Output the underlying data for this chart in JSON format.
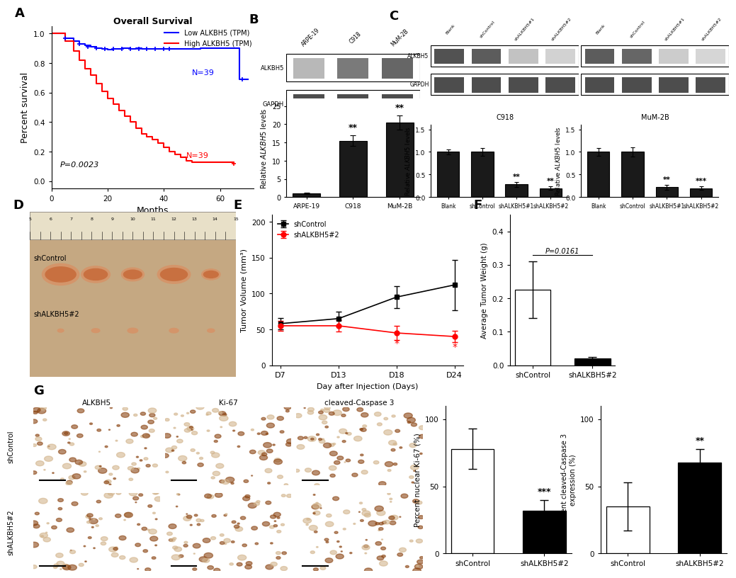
{
  "panel_A": {
    "title": "Overall Survival",
    "xlabel": "Months",
    "ylabel": "Percent survival",
    "p_value": "P=0.0023",
    "blue_label": "Low ALKBH5 (TPM)",
    "red_label": "High ALKBH5 (TPM)",
    "N_blue": "N=39",
    "N_red": "N=39",
    "blue_steps": [
      0,
      5,
      8,
      10,
      12,
      14,
      16,
      18,
      20,
      22,
      25,
      28,
      30,
      32,
      35,
      38,
      40,
      42,
      44,
      46,
      48,
      50,
      53,
      67,
      70
    ],
    "blue_surv": [
      1.0,
      0.97,
      0.95,
      0.93,
      0.92,
      0.91,
      0.9,
      0.895,
      0.89,
      0.895,
      0.9,
      0.895,
      0.9,
      0.895,
      0.895,
      0.895,
      0.895,
      0.895,
      0.895,
      0.895,
      0.895,
      0.895,
      0.9,
      0.69,
      0.69
    ],
    "red_steps": [
      0,
      5,
      8,
      10,
      12,
      14,
      16,
      18,
      20,
      22,
      24,
      26,
      28,
      30,
      32,
      34,
      36,
      38,
      40,
      42,
      44,
      46,
      48,
      50,
      65
    ],
    "red_surv": [
      1.0,
      0.95,
      0.88,
      0.82,
      0.76,
      0.72,
      0.66,
      0.61,
      0.56,
      0.52,
      0.48,
      0.44,
      0.4,
      0.36,
      0.32,
      0.3,
      0.28,
      0.26,
      0.23,
      0.2,
      0.18,
      0.16,
      0.14,
      0.13,
      0.12
    ],
    "blue_censor_x": [
      5,
      10,
      13,
      16,
      19,
      22,
      25,
      28,
      31,
      34,
      37,
      40,
      42,
      68
    ],
    "blue_censor_y": [
      0.97,
      0.93,
      0.91,
      0.9,
      0.895,
      0.895,
      0.895,
      0.895,
      0.895,
      0.895,
      0.895,
      0.895,
      0.895,
      0.69
    ],
    "red_censor_x": [
      65
    ],
    "red_censor_y": [
      0.12
    ],
    "xlim": [
      0,
      72
    ],
    "ylim": [
      -0.05,
      1.05
    ],
    "xticks": [
      0,
      20,
      40,
      60
    ],
    "yticks": [
      0.0,
      0.2,
      0.4,
      0.6,
      0.8,
      1.0
    ]
  },
  "panel_B_bar": {
    "categories": [
      "ARPE-19",
      "C918",
      "MuM-2B"
    ],
    "values": [
      1.0,
      15.5,
      20.5
    ],
    "errors": [
      0.2,
      1.5,
      2.0
    ],
    "ylabel": "Relative ALKBH5 levels",
    "ylim": [
      0,
      27
    ],
    "yticks": [
      0,
      5,
      10,
      15,
      20,
      25
    ],
    "sig_labels": [
      "",
      "**",
      "**"
    ],
    "bar_color": "#1a1a1a",
    "error_color": "black"
  },
  "panel_C_bar_left": {
    "categories": [
      "Blank",
      "shControl",
      "shALKBH5#1",
      "shALKBH5#2"
    ],
    "values": [
      1.0,
      1.0,
      0.28,
      0.2
    ],
    "errors": [
      0.05,
      0.08,
      0.06,
      0.04
    ],
    "title": "C918",
    "ylabel": "Relative ALKBH5 levels",
    "ylim": [
      0,
      1.6
    ],
    "yticks": [
      0.0,
      0.5,
      1.0,
      1.5
    ],
    "sig_labels": [
      "",
      "",
      "**",
      "**"
    ],
    "bar_color": "#1a1a1a"
  },
  "panel_C_bar_right": {
    "categories": [
      "Blank",
      "shControl",
      "shALKBH5#1",
      "shALKBH5#2"
    ],
    "values": [
      1.0,
      1.0,
      0.22,
      0.2
    ],
    "errors": [
      0.08,
      0.1,
      0.05,
      0.04
    ],
    "title": "MuM-2B",
    "ylabel": "Relative ALKBH5 levels",
    "ylim": [
      0,
      1.6
    ],
    "yticks": [
      0.0,
      0.5,
      1.0,
      1.5
    ],
    "sig_labels": [
      "",
      "",
      "**",
      "***"
    ],
    "bar_color": "#1a1a1a"
  },
  "panel_E": {
    "xlabel": "Day after Injection (Days)",
    "ylabel": "Tumor Volume (mm³)",
    "days": [
      "D7",
      "D13",
      "D18",
      "D24"
    ],
    "control_values": [
      58,
      65,
      95,
      112
    ],
    "control_errors": [
      8,
      10,
      15,
      35
    ],
    "sh_values": [
      55,
      55,
      45,
      40
    ],
    "sh_errors": [
      7,
      8,
      10,
      8
    ],
    "control_label": "shControl",
    "sh_label": "shALKBH5#2",
    "control_color": "black",
    "sh_color": "red",
    "ylim": [
      0,
      210
    ],
    "yticks": [
      0,
      50,
      100,
      150,
      200
    ],
    "sig_days": [
      "D18",
      "D24"
    ],
    "sig_labels": [
      "*",
      "*"
    ]
  },
  "panel_F": {
    "categories": [
      "shControl",
      "shALKBH5#2"
    ],
    "values": [
      0.225,
      0.02
    ],
    "errors": [
      0.085,
      0.005
    ],
    "ylabel": "Average Tumor Weight (g)",
    "ylim": [
      0,
      0.45
    ],
    "yticks": [
      0.0,
      0.1,
      0.2,
      0.3,
      0.4
    ],
    "p_value": "P=0.0161",
    "bar_colors": [
      "white",
      "black"
    ],
    "edge_color": "black"
  },
  "panel_G_ki67": {
    "categories": [
      "shControl",
      "shALKBH5#2"
    ],
    "values": [
      78,
      32
    ],
    "errors": [
      15,
      8
    ],
    "ylabel": "Percent nuclear Ki-67 (%)",
    "ylim": [
      0,
      110
    ],
    "yticks": [
      0,
      50,
      100
    ],
    "sig_labels": [
      "",
      "***"
    ],
    "bar_colors": [
      "white",
      "black"
    ],
    "edge_color": "black"
  },
  "panel_G_casp3": {
    "categories": [
      "shControl",
      "shALKBH5#2"
    ],
    "values": [
      35,
      68
    ],
    "errors": [
      18,
      10
    ],
    "ylabel": "Percent cleaved-Caspase 3\nexpression (%)",
    "ylim": [
      0,
      110
    ],
    "yticks": [
      0,
      50,
      100
    ],
    "sig_labels": [
      "",
      "**"
    ],
    "bar_colors": [
      "white",
      "black"
    ],
    "edge_color": "black"
  },
  "ihc_titles": [
    "ALKBH5",
    "Ki-67",
    "cleaved-Caspase 3"
  ],
  "ihc_colors_top": [
    "#d4956a",
    "#c87040",
    "#ddd0c8"
  ],
  "ihc_colors_bot": [
    "#e0c8b8",
    "#e8e4e0",
    "#d4a060"
  ],
  "row_labels": [
    "shControl",
    "shALKBH5#2"
  ]
}
